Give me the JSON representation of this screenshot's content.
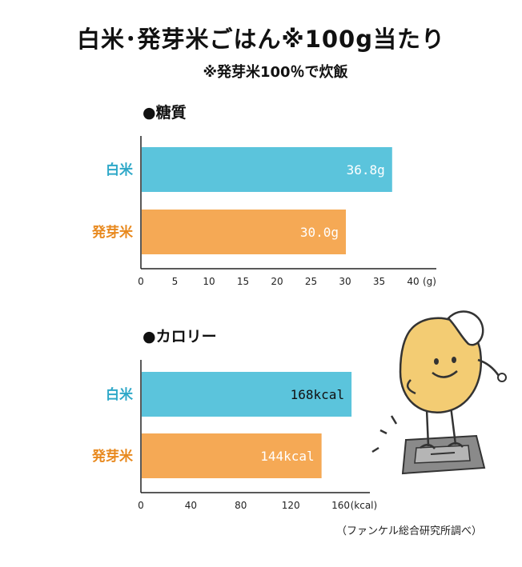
{
  "title": "白米･発芽米ごはん※100g当たり",
  "subtitle": "※発芽米100％で炊飯",
  "source": "（ファンケル総合研究所調べ）",
  "colors": {
    "white_rice": "#5bc4dc",
    "germinated_rice": "#f5a955",
    "white_label": "#2ea8c8",
    "germ_label": "#e8891e"
  },
  "chart_data": [
    {
      "type": "bar",
      "orientation": "horizontal",
      "title": "●糖質",
      "categories": [
        "白米",
        "発芽米"
      ],
      "values": [
        36.8,
        30.0
      ],
      "value_labels": [
        "36.8g",
        "30.0g"
      ],
      "xticks": [
        "0",
        "5",
        "10",
        "15",
        "20",
        "25",
        "30",
        "35",
        "40"
      ],
      "xunit": "(g)",
      "xlim": [
        0,
        45
      ]
    },
    {
      "type": "bar",
      "orientation": "horizontal",
      "title": "●カロリー",
      "categories": [
        "白米",
        "発芽米"
      ],
      "values": [
        168,
        144
      ],
      "value_labels": [
        "168kcal",
        "144kcal"
      ],
      "xticks": [
        "0",
        "40",
        "80",
        "120",
        "160"
      ],
      "xunit": "(kcal)",
      "xlim": [
        0,
        180
      ]
    }
  ]
}
